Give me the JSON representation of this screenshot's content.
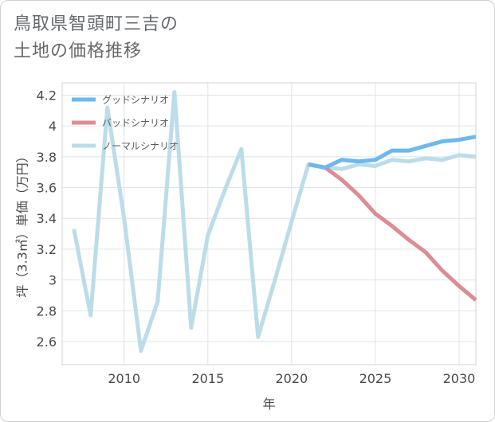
{
  "title": {
    "line1": "鳥取県智頭町三吉の",
    "line2": "土地の価格推移"
  },
  "chart_data": {
    "type": "line",
    "xlabel": "年",
    "ylabel": "坪（3.3㎡）単価（万円）",
    "xlim": [
      2006.3,
      2031
    ],
    "ylim": [
      2.45,
      4.28
    ],
    "x_ticks": [
      2010,
      2015,
      2020,
      2025,
      2030
    ],
    "y_ticks": [
      2.6,
      2.8,
      3,
      3.2,
      3.4,
      3.6,
      3.8,
      4,
      4.2
    ],
    "legend_position": "top-left",
    "series": [
      {
        "name": "グッドシナリオ",
        "color": "#6db8ee",
        "x": [
          2021,
          2022,
          2023,
          2024,
          2025,
          2026,
          2027,
          2028,
          2029,
          2030,
          2031
        ],
        "y": [
          3.75,
          3.73,
          3.78,
          3.77,
          3.78,
          3.84,
          3.84,
          3.87,
          3.9,
          3.91,
          3.93
        ]
      },
      {
        "name": "バッドシナリオ",
        "color": "#dd8c93",
        "x": [
          2021,
          2022,
          2023,
          2024,
          2025,
          2026,
          2027,
          2028,
          2029,
          2030,
          2031
        ],
        "y": [
          3.75,
          3.73,
          3.65,
          3.55,
          3.43,
          3.35,
          3.26,
          3.18,
          3.06,
          2.96,
          2.87
        ]
      },
      {
        "name": "ノーマルシナリオ",
        "color": "#bcdcea",
        "x": [
          2007,
          2008,
          2009,
          2010,
          2011,
          2012,
          2013,
          2014,
          2015,
          2016,
          2017,
          2018,
          2019,
          2020,
          2021,
          2022,
          2023,
          2024,
          2025,
          2026,
          2027,
          2028,
          2029,
          2030,
          2031
        ],
        "y": [
          3.33,
          2.77,
          4.12,
          3.4,
          2.54,
          2.86,
          4.22,
          2.69,
          3.29,
          3.58,
          3.85,
          2.63,
          3.0,
          3.38,
          3.75,
          3.73,
          3.72,
          3.75,
          3.74,
          3.78,
          3.77,
          3.79,
          3.78,
          3.81,
          3.8
        ]
      }
    ]
  }
}
